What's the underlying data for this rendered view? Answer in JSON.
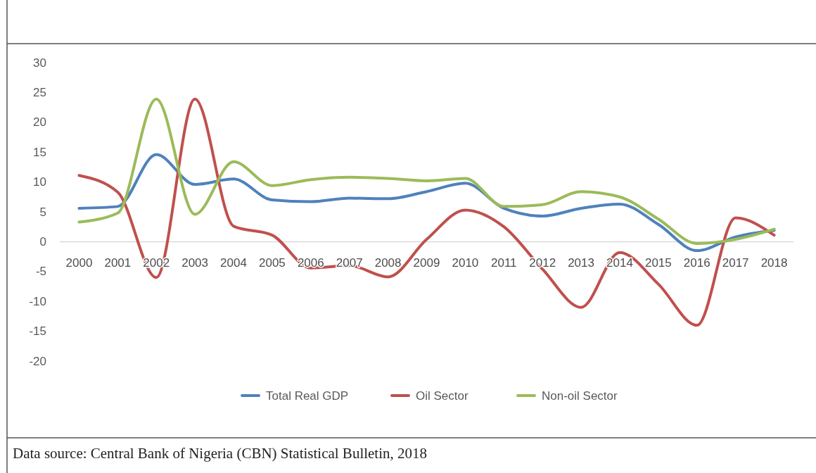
{
  "chart_data": {
    "type": "line",
    "categories": [
      "2000",
      "2001",
      "2002",
      "2003",
      "2004",
      "2005",
      "2006",
      "2007",
      "2008",
      "2009",
      "2010",
      "2011",
      "2012",
      "2013",
      "2014",
      "2015",
      "2016",
      "2017",
      "2018"
    ],
    "series": [
      {
        "name": "Total Real GDP",
        "color": "#4f81bd",
        "values": [
          5.6,
          5.9,
          14.6,
          9.6,
          10.5,
          7.0,
          6.7,
          7.3,
          7.2,
          8.4,
          9.8,
          5.6,
          4.3,
          5.6,
          6.3,
          2.9,
          -1.5,
          0.8,
          1.9
        ]
      },
      {
        "name": "Oil Sector",
        "color": "#c0504d",
        "values": [
          11.1,
          8.3,
          -6.0,
          23.9,
          2.6,
          1.1,
          -4.4,
          -4.0,
          -5.9,
          0.4,
          5.3,
          2.5,
          -4.6,
          -11.0,
          -1.8,
          -7.1,
          -14.0,
          4.0,
          1.1
        ]
      },
      {
        "name": "Non-oil Sector",
        "color": "#9bbb59",
        "values": [
          3.3,
          4.8,
          23.9,
          4.6,
          13.4,
          9.4,
          10.4,
          10.8,
          10.6,
          10.2,
          10.6,
          5.9,
          6.2,
          8.4,
          7.5,
          3.8,
          -0.3,
          0.4,
          2.1
        ]
      }
    ],
    "ylim": [
      -20,
      30
    ],
    "yticks": [
      -20,
      -15,
      -10,
      -5,
      0,
      5,
      10,
      15,
      20,
      25,
      30
    ],
    "legend": "bottom",
    "annotations": [
      "Data source: Central Bank of Nigeria (CBN) Statistical Bulletin, 2018"
    ]
  }
}
